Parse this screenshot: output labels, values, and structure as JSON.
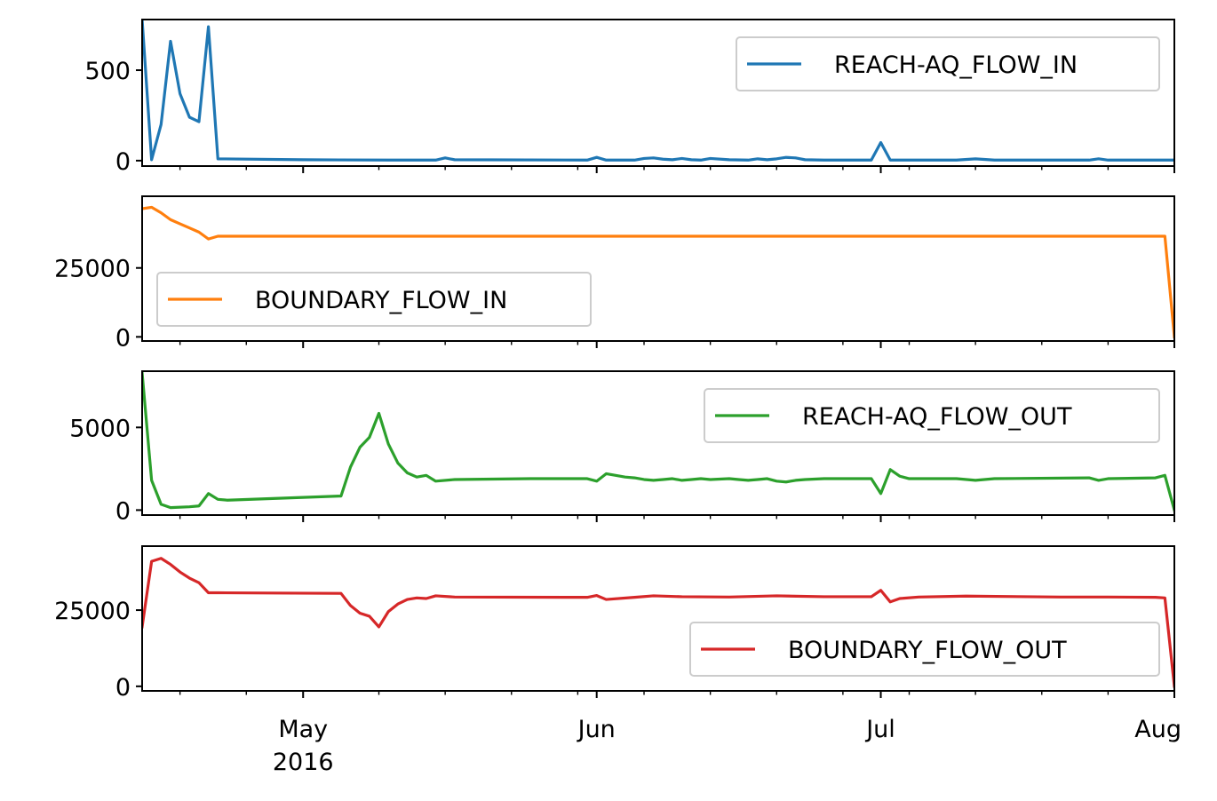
{
  "chart_data": [
    {
      "type": "line",
      "legend_loc": "upper right",
      "ylim": [
        -30,
        780
      ],
      "yticks": [
        0,
        500
      ],
      "series": [
        {
          "name": "REACH-AQ_FLOW_IN",
          "color": "#1f77b4",
          "points": [
            [
              "2016-04-14",
              780
            ],
            [
              "2016-04-15",
              5
            ],
            [
              "2016-04-16",
              200
            ],
            [
              "2016-04-17",
              660
            ],
            [
              "2016-04-18",
              370
            ],
            [
              "2016-04-19",
              240
            ],
            [
              "2016-04-20",
              215
            ],
            [
              "2016-04-21",
              740
            ],
            [
              "2016-04-22",
              10
            ],
            [
              "2016-05-01",
              5
            ],
            [
              "2016-05-10",
              3
            ],
            [
              "2016-05-15",
              3
            ],
            [
              "2016-05-16",
              15
            ],
            [
              "2016-05-17",
              5
            ],
            [
              "2016-05-31",
              3
            ],
            [
              "2016-06-01",
              18
            ],
            [
              "2016-06-02",
              3
            ],
            [
              "2016-06-05",
              3
            ],
            [
              "2016-06-06",
              12
            ],
            [
              "2016-06-07",
              15
            ],
            [
              "2016-06-08",
              8
            ],
            [
              "2016-06-09",
              5
            ],
            [
              "2016-06-10",
              12
            ],
            [
              "2016-06-11",
              5
            ],
            [
              "2016-06-12",
              3
            ],
            [
              "2016-06-13",
              12
            ],
            [
              "2016-06-15",
              5
            ],
            [
              "2016-06-17",
              3
            ],
            [
              "2016-06-18",
              10
            ],
            [
              "2016-06-19",
              5
            ],
            [
              "2016-06-20",
              10
            ],
            [
              "2016-06-21",
              18
            ],
            [
              "2016-06-22",
              15
            ],
            [
              "2016-06-23",
              5
            ],
            [
              "2016-06-25",
              3
            ],
            [
              "2016-06-30",
              3
            ],
            [
              "2016-07-01",
              100
            ],
            [
              "2016-07-02",
              3
            ],
            [
              "2016-07-09",
              3
            ],
            [
              "2016-07-11",
              10
            ],
            [
              "2016-07-13",
              3
            ],
            [
              "2016-07-23",
              3
            ],
            [
              "2016-07-24",
              10
            ],
            [
              "2016-07-25",
              3
            ],
            [
              "2016-08-01",
              3
            ]
          ]
        }
      ]
    },
    {
      "type": "line",
      "legend_loc": "lower left",
      "ylim": [
        -1500,
        51000
      ],
      "yticks": [
        0,
        25000
      ],
      "series": [
        {
          "name": "BOUNDARY_FLOW_IN",
          "color": "#ff7f0e",
          "points": [
            [
              "2016-04-14",
              46500
            ],
            [
              "2016-04-15",
              47000
            ],
            [
              "2016-04-16",
              45000
            ],
            [
              "2016-04-17",
              42500
            ],
            [
              "2016-04-18",
              41000
            ],
            [
              "2016-04-19",
              39500
            ],
            [
              "2016-04-20",
              38000
            ],
            [
              "2016-04-21",
              35500
            ],
            [
              "2016-04-22",
              36500
            ],
            [
              "2016-07-31",
              36500
            ],
            [
              "2016-08-01",
              0
            ]
          ]
        }
      ]
    },
    {
      "type": "line",
      "legend_loc": "upper right",
      "ylim": [
        -300,
        8400
      ],
      "yticks": [
        0,
        5000
      ],
      "series": [
        {
          "name": "REACH-AQ_FLOW_OUT",
          "color": "#2ca02c",
          "points": [
            [
              "2016-04-14",
              8300
            ],
            [
              "2016-04-15",
              1800
            ],
            [
              "2016-04-16",
              350
            ],
            [
              "2016-04-17",
              150
            ],
            [
              "2016-04-19",
              200
            ],
            [
              "2016-04-20",
              250
            ],
            [
              "2016-04-21",
              1000
            ],
            [
              "2016-04-22",
              650
            ],
            [
              "2016-04-23",
              600
            ],
            [
              "2016-05-05",
              850
            ],
            [
              "2016-05-06",
              2600
            ],
            [
              "2016-05-07",
              3800
            ],
            [
              "2016-05-08",
              4400
            ],
            [
              "2016-05-09",
              5850
            ],
            [
              "2016-05-10",
              4000
            ],
            [
              "2016-05-11",
              2850
            ],
            [
              "2016-05-12",
              2250
            ],
            [
              "2016-05-13",
              2000
            ],
            [
              "2016-05-14",
              2100
            ],
            [
              "2016-05-15",
              1750
            ],
            [
              "2016-05-17",
              1850
            ],
            [
              "2016-05-25",
              1900
            ],
            [
              "2016-05-31",
              1900
            ],
            [
              "2016-06-01",
              1750
            ],
            [
              "2016-06-02",
              2200
            ],
            [
              "2016-06-03",
              2100
            ],
            [
              "2016-06-04",
              2000
            ],
            [
              "2016-06-05",
              1950
            ],
            [
              "2016-06-06",
              1850
            ],
            [
              "2016-06-07",
              1800
            ],
            [
              "2016-06-08",
              1850
            ],
            [
              "2016-06-09",
              1900
            ],
            [
              "2016-06-10",
              1800
            ],
            [
              "2016-06-11",
              1850
            ],
            [
              "2016-06-12",
              1900
            ],
            [
              "2016-06-13",
              1850
            ],
            [
              "2016-06-15",
              1900
            ],
            [
              "2016-06-16",
              1850
            ],
            [
              "2016-06-17",
              1800
            ],
            [
              "2016-06-18",
              1850
            ],
            [
              "2016-06-19",
              1900
            ],
            [
              "2016-06-20",
              1750
            ],
            [
              "2016-06-21",
              1700
            ],
            [
              "2016-06-22",
              1800
            ],
            [
              "2016-06-23",
              1850
            ],
            [
              "2016-06-25",
              1900
            ],
            [
              "2016-06-30",
              1900
            ],
            [
              "2016-07-01",
              1000
            ],
            [
              "2016-07-02",
              2450
            ],
            [
              "2016-07-03",
              2050
            ],
            [
              "2016-07-04",
              1900
            ],
            [
              "2016-07-09",
              1900
            ],
            [
              "2016-07-11",
              1800
            ],
            [
              "2016-07-13",
              1900
            ],
            [
              "2016-07-23",
              1950
            ],
            [
              "2016-07-24",
              1800
            ],
            [
              "2016-07-25",
              1900
            ],
            [
              "2016-07-30",
              1950
            ],
            [
              "2016-07-31",
              2100
            ],
            [
              "2016-08-01",
              0
            ]
          ]
        }
      ]
    },
    {
      "type": "line",
      "legend_loc": "lower right",
      "ylim": [
        -1500,
        46000
      ],
      "yticks": [
        0,
        25000
      ],
      "series": [
        {
          "name": "BOUNDARY_FLOW_OUT",
          "color": "#d62728",
          "points": [
            [
              "2016-04-14",
              19500
            ],
            [
              "2016-04-15",
              41000
            ],
            [
              "2016-04-16",
              42000
            ],
            [
              "2016-04-17",
              40000
            ],
            [
              "2016-04-18",
              37500
            ],
            [
              "2016-04-19",
              35500
            ],
            [
              "2016-04-20",
              34000
            ],
            [
              "2016-04-21",
              30700
            ],
            [
              "2016-04-22",
              30700
            ],
            [
              "2016-05-05",
              30500
            ],
            [
              "2016-05-06",
              26500
            ],
            [
              "2016-05-07",
              24000
            ],
            [
              "2016-05-08",
              23000
            ],
            [
              "2016-05-09",
              19500
            ],
            [
              "2016-05-10",
              24500
            ],
            [
              "2016-05-11",
              27000
            ],
            [
              "2016-05-12",
              28500
            ],
            [
              "2016-05-13",
              29000
            ],
            [
              "2016-05-14",
              28800
            ],
            [
              "2016-05-15",
              29700
            ],
            [
              "2016-05-17",
              29300
            ],
            [
              "2016-05-31",
              29200
            ],
            [
              "2016-06-01",
              29800
            ],
            [
              "2016-06-02",
              28500
            ],
            [
              "2016-06-05",
              29200
            ],
            [
              "2016-06-07",
              29700
            ],
            [
              "2016-06-10",
              29400
            ],
            [
              "2016-06-15",
              29300
            ],
            [
              "2016-06-20",
              29700
            ],
            [
              "2016-06-25",
              29400
            ],
            [
              "2016-06-30",
              29400
            ],
            [
              "2016-07-01",
              31500
            ],
            [
              "2016-07-02",
              27700
            ],
            [
              "2016-07-03",
              28800
            ],
            [
              "2016-07-05",
              29300
            ],
            [
              "2016-07-10",
              29600
            ],
            [
              "2016-07-20",
              29300
            ],
            [
              "2016-07-25",
              29300
            ],
            [
              "2016-07-30",
              29200
            ],
            [
              "2016-07-31",
              29000
            ],
            [
              "2016-08-01",
              0
            ]
          ]
        }
      ]
    }
  ],
  "x_axis": {
    "range": [
      "2016-04-14",
      "2016-08-01"
    ],
    "major_ticks": [
      {
        "date": "2016-05-01",
        "label": "May"
      },
      {
        "date": "2016-06-01",
        "label": "Jun"
      },
      {
        "date": "2016-07-01",
        "label": "Jul"
      },
      {
        "date": "2016-08-01",
        "label": "Aug"
      }
    ],
    "year_label": "2016",
    "minor_ticks": [
      "2016-04-18",
      "2016-04-25",
      "2016-05-09",
      "2016-05-16",
      "2016-05-23",
      "2016-05-30",
      "2016-06-06",
      "2016-06-13",
      "2016-06-20",
      "2016-06-27",
      "2016-07-04",
      "2016-07-11",
      "2016-07-18",
      "2016-07-25"
    ]
  }
}
